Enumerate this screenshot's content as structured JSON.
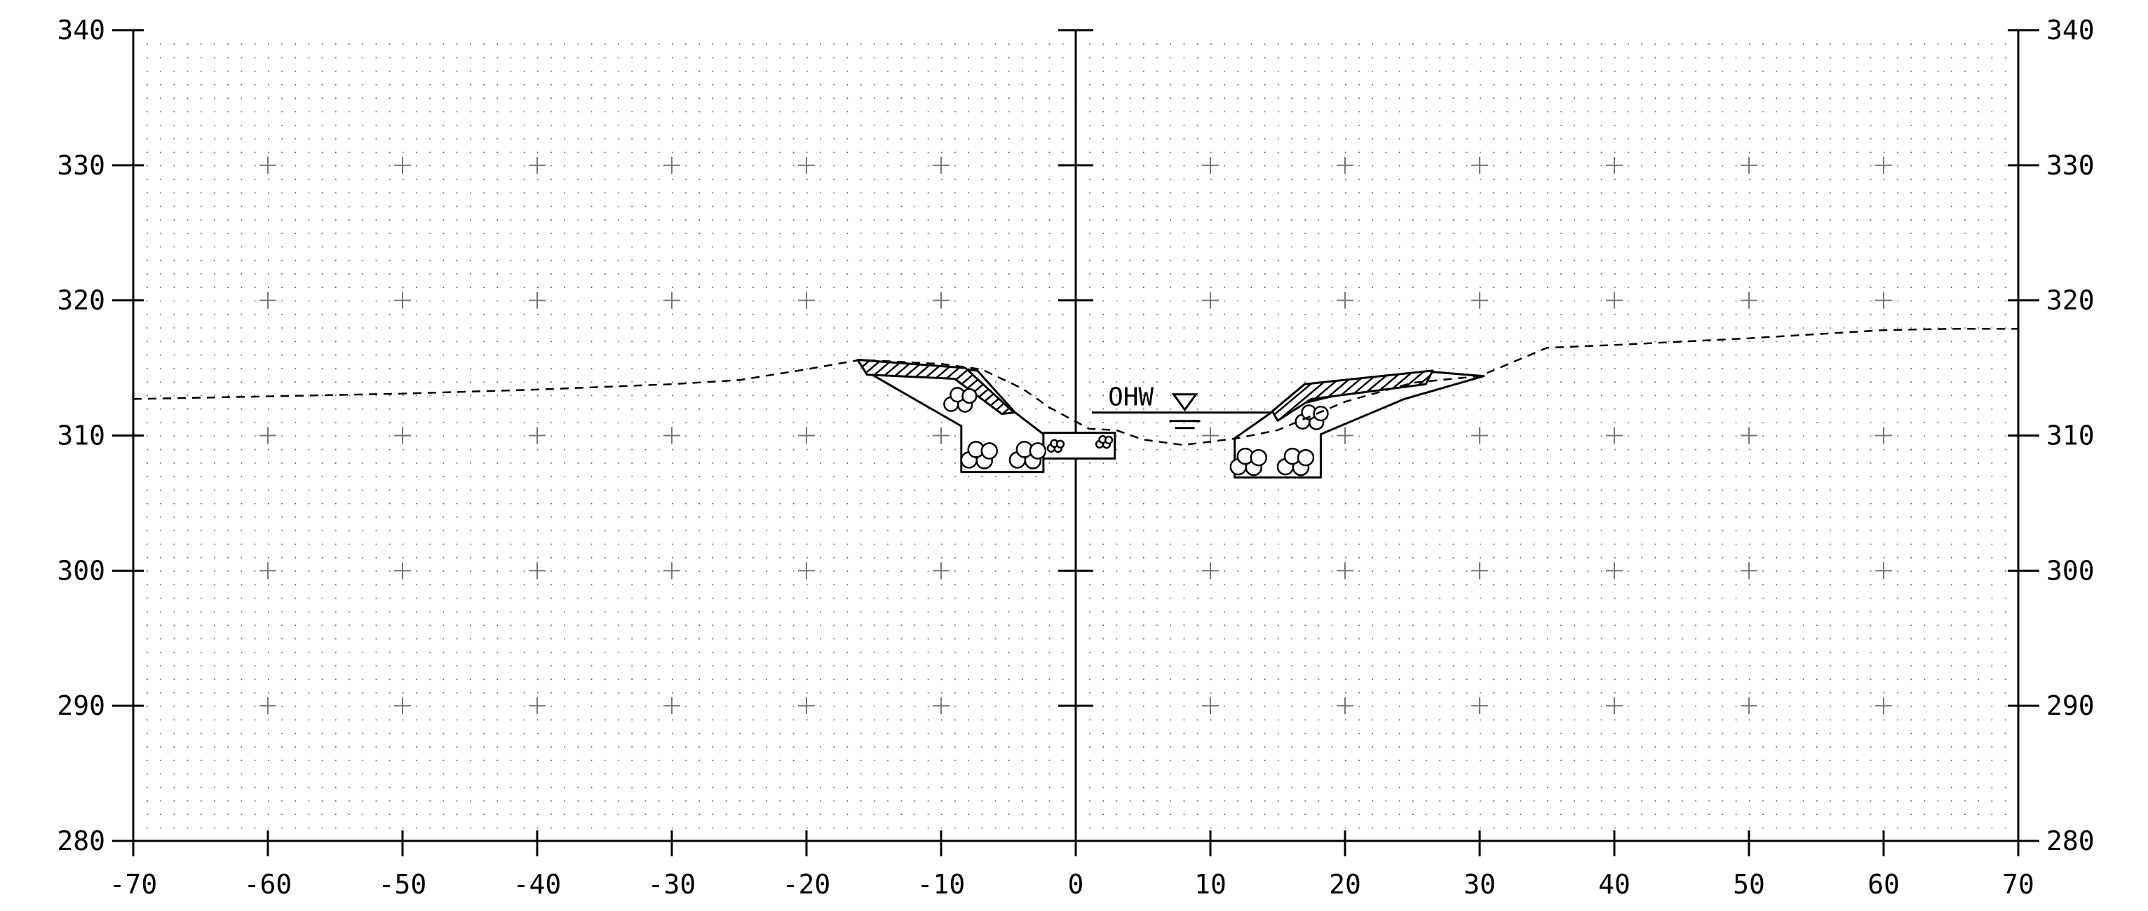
{
  "chart_data": {
    "type": "line",
    "title": "",
    "xlabel": "",
    "ylabel": "",
    "xlim": [
      -70,
      70
    ],
    "ylim": [
      280,
      340
    ],
    "x_ticks": [
      -70,
      -60,
      -50,
      -40,
      -30,
      -20,
      -10,
      0,
      10,
      20,
      30,
      40,
      50,
      60,
      70
    ],
    "x_tick_labels": [
      "-70",
      "-60",
      "-50",
      "-40",
      "-30",
      "-20",
      "-10",
      "0",
      "10",
      "20",
      "30",
      "40",
      "50",
      "60",
      "70"
    ],
    "y_ticks": [
      280,
      290,
      300,
      310,
      320,
      330,
      340
    ],
    "y_tick_labels": [
      "280",
      "290",
      "300",
      "310",
      "320",
      "330",
      "340"
    ],
    "grid": "dotted background with + markers every 10 units",
    "series": [
      {
        "style": "dashed",
        "x": [
          -70,
          -60,
          -50,
          -40,
          -30,
          -25,
          -20,
          -16,
          -10,
          -7,
          -4,
          -2,
          1,
          3,
          5,
          8,
          12,
          15,
          20,
          25,
          30,
          35,
          40,
          50,
          60,
          65,
          70
        ],
        "y": [
          312.7,
          312.9,
          313.1,
          313.4,
          313.8,
          314.1,
          314.9,
          315.6,
          315.3,
          314.9,
          313.5,
          312.1,
          310.5,
          310.4,
          309.7,
          309.3,
          309.8,
          310.4,
          312.5,
          313.9,
          314.4,
          316.5,
          316.7,
          317.2,
          317.8,
          317.9,
          317.9
        ]
      }
    ],
    "annotations": {
      "water_label": "OHW",
      "water_elevation": 311.7,
      "water_extent": [
        1.2,
        14.5
      ]
    },
    "structures": {
      "left_rock_slope": [
        [
          -16,
          315.6
        ],
        [
          -7.3,
          314.8
        ],
        [
          -4.5,
          311.7
        ],
        [
          -2.4,
          310.1
        ],
        [
          -2.4,
          307.3
        ],
        [
          -8.5,
          307.3
        ],
        [
          -8.5,
          310.7
        ],
        [
          -15.3,
          314.6
        ]
      ],
      "left_topsoil": [
        [
          -16.2,
          315.6
        ],
        [
          -8.2,
          315.0
        ],
        [
          -4.6,
          311.7
        ],
        [
          -5.5,
          311.6
        ],
        [
          -9.0,
          314.2
        ],
        [
          -15.5,
          314.5
        ]
      ],
      "culvert_block": [
        [
          -2.4,
          310.2
        ],
        [
          2.9,
          310.2
        ],
        [
          2.9,
          308.3
        ],
        [
          -2.4,
          308.3
        ]
      ],
      "right_rock_slope": [
        [
          11.8,
          309.8
        ],
        [
          14.8,
          311.9
        ],
        [
          26.6,
          314.7
        ],
        [
          30.3,
          314.4
        ],
        [
          24.4,
          312.7
        ],
        [
          18.2,
          310.1
        ],
        [
          18.2,
          306.9
        ],
        [
          11.8,
          306.9
        ]
      ],
      "right_topsoil": [
        [
          14.6,
          311.8
        ],
        [
          17.0,
          313.8
        ],
        [
          26.5,
          314.8
        ],
        [
          26.0,
          313.8
        ],
        [
          17.5,
          312.7
        ],
        [
          15.0,
          311.1
        ]
      ]
    }
  }
}
